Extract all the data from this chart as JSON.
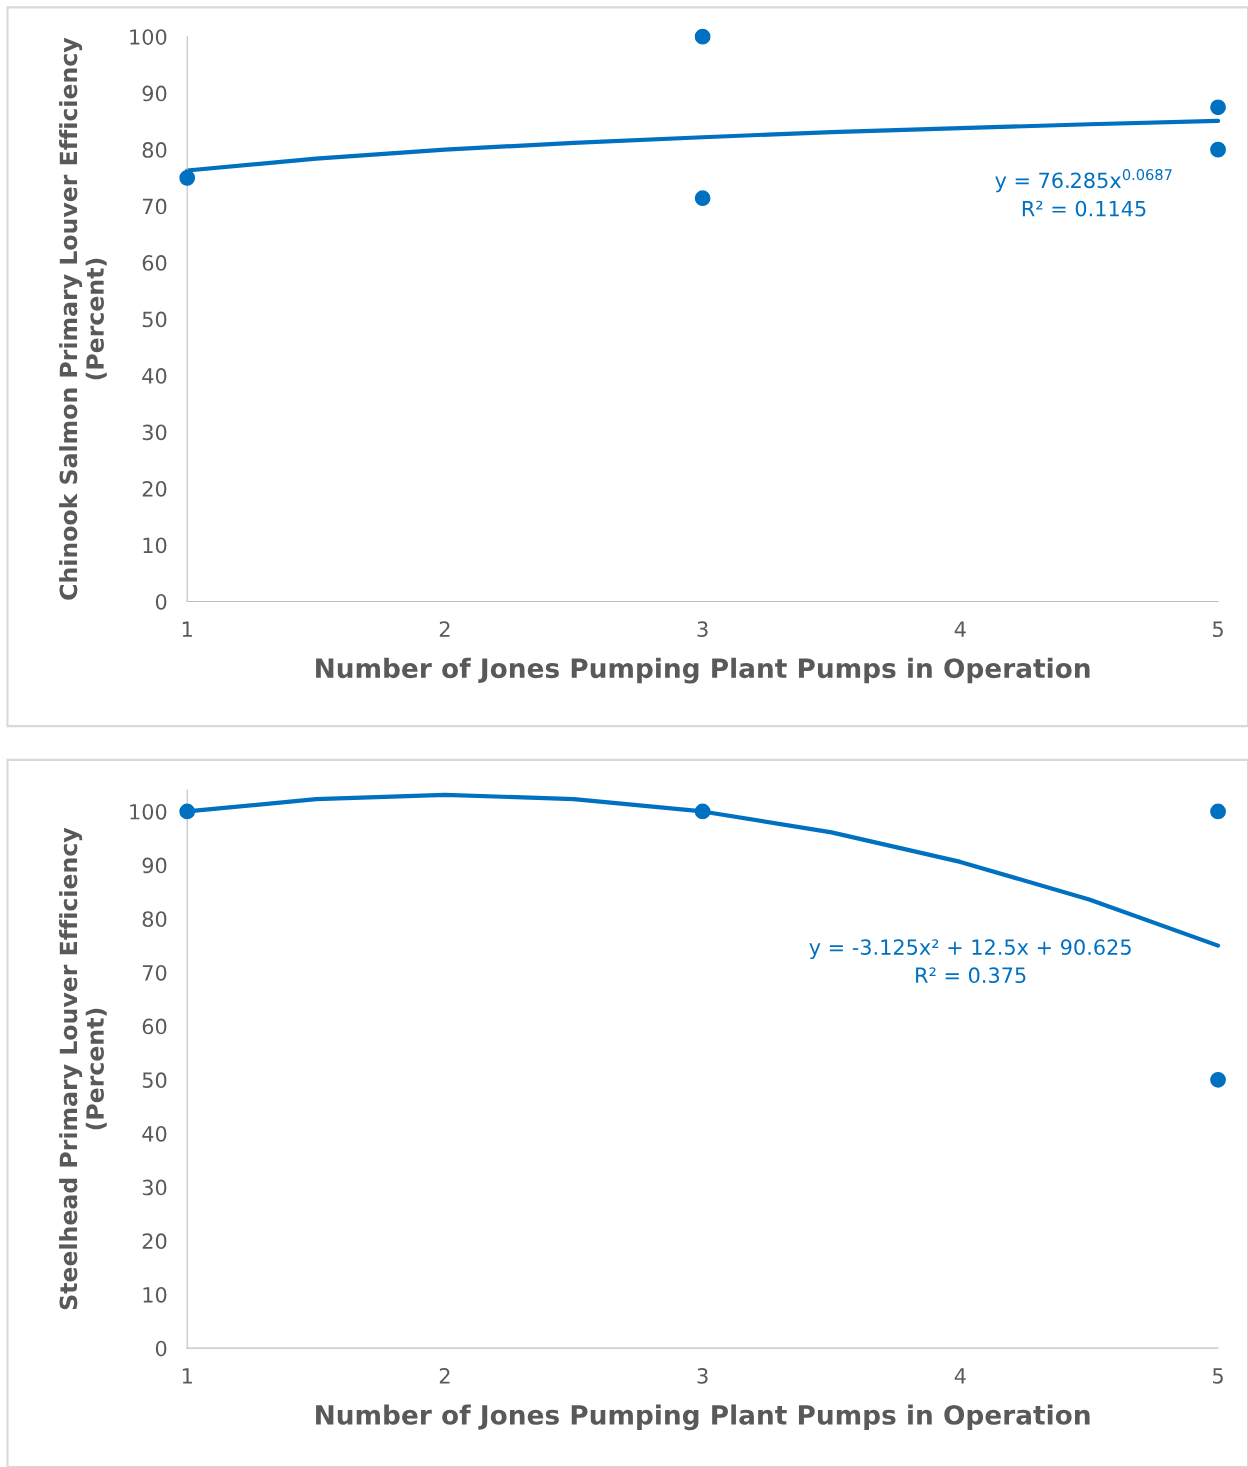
{
  "chart_data": [
    {
      "type": "scatter",
      "xlabel": "Number of Jones Pumping Plant Pumps in Operation",
      "ylabel": "Chinook Salmon Primary Louver Efficiency\n(Percent)",
      "xlim": [
        1,
        5
      ],
      "xticks": [
        1,
        2,
        3,
        4,
        5
      ],
      "ylim": [
        0,
        100
      ],
      "yticks": [
        0,
        10,
        20,
        30,
        40,
        50,
        60,
        70,
        80,
        90,
        100
      ],
      "grid": false,
      "legend": false,
      "marker": "circle",
      "series": [
        {
          "color": "#0070c0",
          "x": [
            1,
            3,
            3,
            5,
            5
          ],
          "values": [
            75,
            100,
            71.4,
            87.5,
            80
          ]
        },
        {
          "type": "line",
          "color": "#0070c0",
          "marker": "none",
          "line_style": "solid",
          "x": [
            1,
            1.5,
            2,
            2.5,
            3,
            3.5,
            4,
            4.5,
            5
          ],
          "values": [
            76.3,
            78.4,
            80.0,
            81.2,
            82.2,
            83.1,
            83.8,
            84.5,
            85.1
          ]
        }
      ],
      "annotations": [
        "y = 76.285x$^{0.0687}$\nR² = 0.1145"
      ]
    },
    {
      "type": "scatter",
      "xlabel": "Number of Jones Pumping Plant Pumps in Operation",
      "ylabel": "Steelhead Primary Louver Efficiency\n(Percent)",
      "xlim": [
        1,
        5
      ],
      "xticks": [
        1,
        2,
        3,
        4,
        5
      ],
      "ylim": [
        0,
        104
      ],
      "yticks": [
        0,
        10,
        20,
        30,
        40,
        50,
        60,
        70,
        80,
        90,
        100
      ],
      "grid": false,
      "legend": false,
      "marker": "circle",
      "series": [
        {
          "color": "#0070c0",
          "x": [
            1,
            3,
            5,
            5
          ],
          "values": [
            100,
            100,
            100,
            50
          ]
        },
        {
          "type": "line",
          "color": "#0070c0",
          "marker": "none",
          "line_style": "solid",
          "x": [
            1,
            1.5,
            2,
            2.5,
            3,
            3.5,
            4,
            4.5,
            5
          ],
          "values": [
            100,
            102.3,
            103.1,
            102.3,
            100,
            96.1,
            90.6,
            83.6,
            75
          ]
        }
      ],
      "annotations": [
        "y = -3.125x² + 12.5x + 90.625\nR² = 0.375"
      ]
    }
  ]
}
